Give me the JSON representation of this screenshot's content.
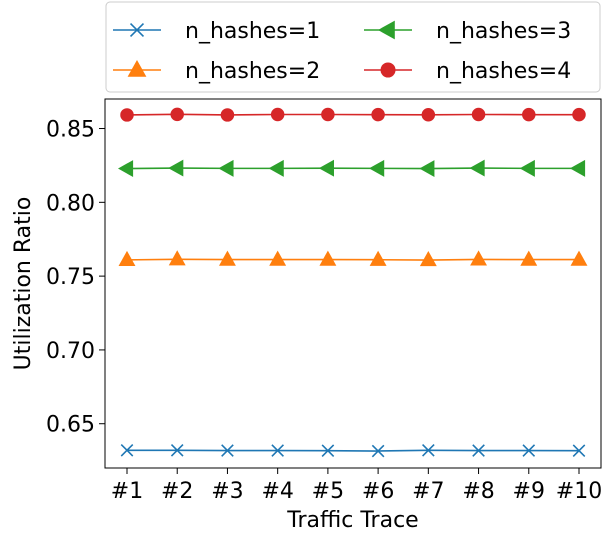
{
  "chart_data": {
    "type": "line",
    "title": "",
    "xlabel": "Traffic Trace",
    "ylabel": "Utilization Ratio",
    "categories": [
      "#1",
      "#2",
      "#3",
      "#4",
      "#5",
      "#6",
      "#7",
      "#8",
      "#9",
      "#10"
    ],
    "ylim": [
      0.62,
      0.87
    ],
    "yticks": [
      0.65,
      0.7,
      0.75,
      0.8,
      0.85
    ],
    "ytick_labels": [
      "0.65",
      "0.70",
      "0.75",
      "0.80",
      "0.85"
    ],
    "grid": false,
    "legend_position": "top, outside plot, 2 columns",
    "series": [
      {
        "name": "n_hashes=1",
        "color": "#1f77b4",
        "marker": "x",
        "values": [
          0.632,
          0.632,
          0.6318,
          0.6318,
          0.6317,
          0.6315,
          0.632,
          0.6318,
          0.6318,
          0.6317
        ]
      },
      {
        "name": "n_hashes=2",
        "color": "#ff7f0e",
        "marker": "triangle-up",
        "values": [
          0.761,
          0.7614,
          0.7612,
          0.7612,
          0.7612,
          0.7611,
          0.7609,
          0.7613,
          0.7612,
          0.7612
        ]
      },
      {
        "name": "n_hashes=3",
        "color": "#2ca02c",
        "marker": "triangle-left",
        "values": [
          0.8229,
          0.8232,
          0.823,
          0.823,
          0.8231,
          0.823,
          0.8229,
          0.8232,
          0.823,
          0.823
        ]
      },
      {
        "name": "n_hashes=4",
        "color": "#d62728",
        "marker": "circle",
        "values": [
          0.8592,
          0.8596,
          0.8592,
          0.8595,
          0.8595,
          0.8594,
          0.8593,
          0.8595,
          0.8594,
          0.8594
        ]
      }
    ]
  }
}
